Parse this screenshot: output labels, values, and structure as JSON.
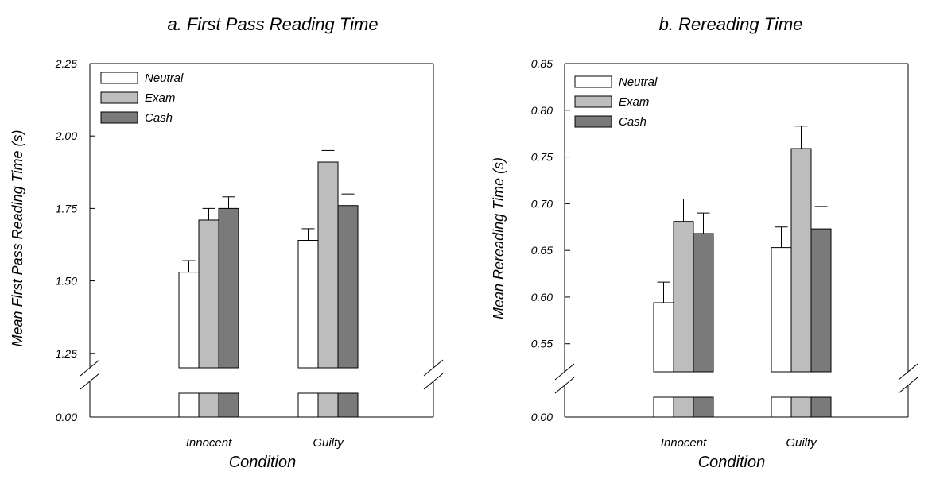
{
  "colors": {
    "Neutral": "#ffffff",
    "Exam": "#bdbdbd",
    "Cash": "#7a7a7a",
    "stroke": "#000000"
  },
  "chart_data": [
    {
      "type": "bar",
      "title": "a. First Pass Reading Time",
      "xlabel": "Condition",
      "ylabel": "Mean First Pass Reading Time (s)",
      "categories": [
        "Innocent",
        "Guilty"
      ],
      "ylim": [
        1.2,
        2.25
      ],
      "broken_axis": true,
      "lower_tick": "0.00",
      "yticks": [
        "1.25",
        "1.50",
        "1.75",
        "2.00",
        "2.25"
      ],
      "legend_position": "top-left",
      "series": [
        {
          "name": "Neutral",
          "values": [
            1.53,
            1.64
          ],
          "errors": [
            0.04,
            0.04
          ]
        },
        {
          "name": "Exam",
          "values": [
            1.71,
            1.91
          ],
          "errors": [
            0.04,
            0.04
          ]
        },
        {
          "name": "Cash",
          "values": [
            1.75,
            1.76
          ],
          "errors": [
            0.04,
            0.04
          ]
        }
      ]
    },
    {
      "type": "bar",
      "title": "b. Rereading Time",
      "xlabel": "Condition",
      "ylabel": "Mean Rereading Time (s)",
      "categories": [
        "Innocent",
        "Guilty"
      ],
      "ylim": [
        0.52,
        0.85
      ],
      "broken_axis": true,
      "lower_tick": "0.00",
      "yticks": [
        "0.55",
        "0.60",
        "0.65",
        "0.70",
        "0.75",
        "0.80",
        "0.85"
      ],
      "legend_position": "top-left",
      "series": [
        {
          "name": "Neutral",
          "values": [
            0.594,
            0.653
          ],
          "errors": [
            0.022,
            0.022
          ]
        },
        {
          "name": "Exam",
          "values": [
            0.681,
            0.759
          ],
          "errors": [
            0.024,
            0.024
          ]
        },
        {
          "name": "Cash",
          "values": [
            0.668,
            0.673
          ],
          "errors": [
            0.022,
            0.024
          ]
        }
      ]
    }
  ]
}
